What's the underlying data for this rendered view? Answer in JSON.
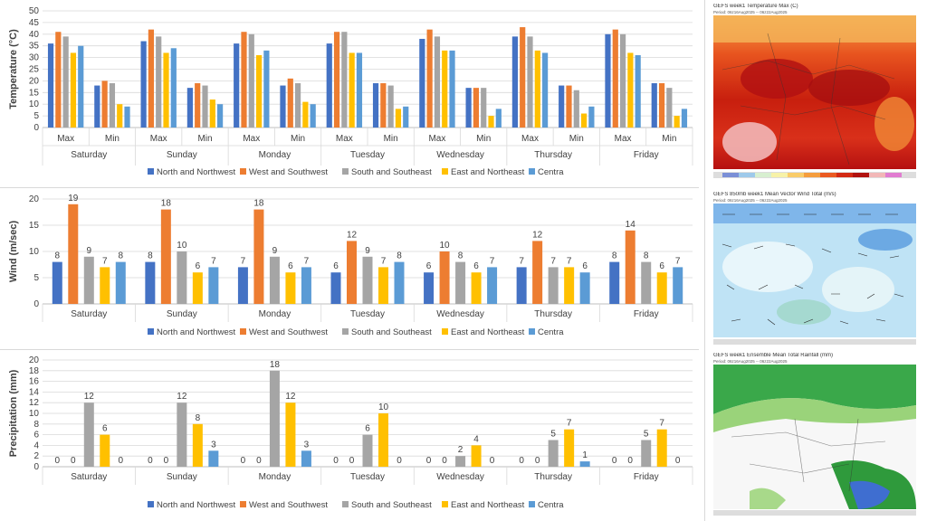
{
  "colors": {
    "north": "#4472c4",
    "west": "#ed7d31",
    "south": "#a5a5a5",
    "east": "#ffc000",
    "centra": "#5b9bd5"
  },
  "chart_data": [
    {
      "type": "bar",
      "ylabel": "Temperature (°C)",
      "ylim": [
        0,
        50
      ],
      "yticks": [
        0,
        5,
        10,
        15,
        20,
        25,
        30,
        35,
        40,
        45,
        50
      ],
      "days": [
        "Saturday",
        "Sunday",
        "Monday",
        "Tuesday",
        "Wednesday",
        "Thursday",
        "Friday"
      ],
      "sub_categories": [
        "Max",
        "Min"
      ],
      "legend": "bottom",
      "series": [
        {
          "name": "North and Northwest",
          "color_key": "north",
          "values": [
            [
              36,
              18
            ],
            [
              37,
              17
            ],
            [
              36,
              18
            ],
            [
              36,
              19
            ],
            [
              38,
              17
            ],
            [
              39,
              18
            ],
            [
              40,
              19
            ]
          ]
        },
        {
          "name": "West and Southwest",
          "color_key": "west",
          "values": [
            [
              41,
              20
            ],
            [
              42,
              19
            ],
            [
              41,
              21
            ],
            [
              41,
              19
            ],
            [
              42,
              17
            ],
            [
              43,
              18
            ],
            [
              42,
              19
            ]
          ]
        },
        {
          "name": "South and Southeast",
          "color_key": "south",
          "values": [
            [
              39,
              19
            ],
            [
              39,
              18
            ],
            [
              40,
              19
            ],
            [
              41,
              18
            ],
            [
              39,
              17
            ],
            [
              39,
              16
            ],
            [
              40,
              17
            ]
          ]
        },
        {
          "name": "East and Northeast",
          "color_key": "east",
          "values": [
            [
              32,
              10
            ],
            [
              32,
              12
            ],
            [
              31,
              11
            ],
            [
              32,
              8
            ],
            [
              33,
              5
            ],
            [
              33,
              6
            ],
            [
              32,
              5
            ]
          ]
        },
        {
          "name": "Centra",
          "color_key": "centra",
          "values": [
            [
              35,
              9
            ],
            [
              34,
              10
            ],
            [
              33,
              10
            ],
            [
              32,
              9
            ],
            [
              33,
              8
            ],
            [
              32,
              9
            ],
            [
              31,
              8
            ]
          ]
        }
      ]
    },
    {
      "type": "bar",
      "ylabel": "Wind (m/sec)",
      "ylim": [
        0,
        20
      ],
      "yticks": [
        0,
        5,
        10,
        15,
        20
      ],
      "categories": [
        "Saturday",
        "Sunday",
        "Monday",
        "Tuesday",
        "Wednesday",
        "Thursday",
        "Friday"
      ],
      "legend": "bottom",
      "data_labels": true,
      "series": [
        {
          "name": "North and Northwest",
          "color_key": "north",
          "values": [
            8,
            8,
            7,
            6,
            6,
            7,
            8
          ]
        },
        {
          "name": "West and Southwest",
          "color_key": "west",
          "values": [
            19,
            18,
            18,
            12,
            10,
            12,
            14
          ]
        },
        {
          "name": "South and Southeast",
          "color_key": "south",
          "values": [
            9,
            10,
            9,
            9,
            8,
            7,
            8
          ]
        },
        {
          "name": "East and Northeast",
          "color_key": "east",
          "values": [
            7,
            6,
            6,
            7,
            6,
            7,
            6
          ]
        },
        {
          "name": "Centra",
          "color_key": "centra",
          "values": [
            8,
            7,
            7,
            8,
            7,
            6,
            7
          ]
        }
      ]
    },
    {
      "type": "bar",
      "ylabel": "Precipitation (mm)",
      "ylim": [
        0,
        20
      ],
      "yticks": [
        0,
        2,
        4,
        6,
        8,
        10,
        12,
        14,
        16,
        18,
        20
      ],
      "categories": [
        "Saturday",
        "Sunday",
        "Monday",
        "Tuesday",
        "Wednesday",
        "Thursday",
        "Friday"
      ],
      "legend": "bottom",
      "data_labels": true,
      "series": [
        {
          "name": "North and Northwest",
          "color_key": "north",
          "values": [
            0,
            0,
            0,
            0,
            0,
            0,
            0
          ]
        },
        {
          "name": "West and Southwest",
          "color_key": "west",
          "values": [
            0,
            0,
            0,
            0,
            0,
            0,
            0
          ]
        },
        {
          "name": "South and Southeast",
          "color_key": "south",
          "values": [
            12,
            12,
            18,
            6,
            2,
            5,
            5
          ]
        },
        {
          "name": "East and Northeast",
          "color_key": "east",
          "values": [
            6,
            8,
            12,
            10,
            4,
            7,
            7
          ]
        },
        {
          "name": "Centra",
          "color_key": "centra",
          "values": [
            0,
            3,
            3,
            0,
            0,
            1,
            0
          ]
        }
      ]
    }
  ],
  "maps": [
    {
      "title": "GEFS week1 Temperature Max (C)",
      "period": "Period: 06z16Aug2025 -- 06z22Aug2025"
    },
    {
      "title": "GEFS 850mb week1 Mean Vector Wind Total (m/s)",
      "period": "Period: 06z16Aug2025 -- 06z22Aug2025"
    },
    {
      "title": "GEFS week1 Ensemble Mean Total Rainfall (mm)",
      "period": "Period: 06z16Aug2025 -- 06z22Aug2025"
    }
  ]
}
